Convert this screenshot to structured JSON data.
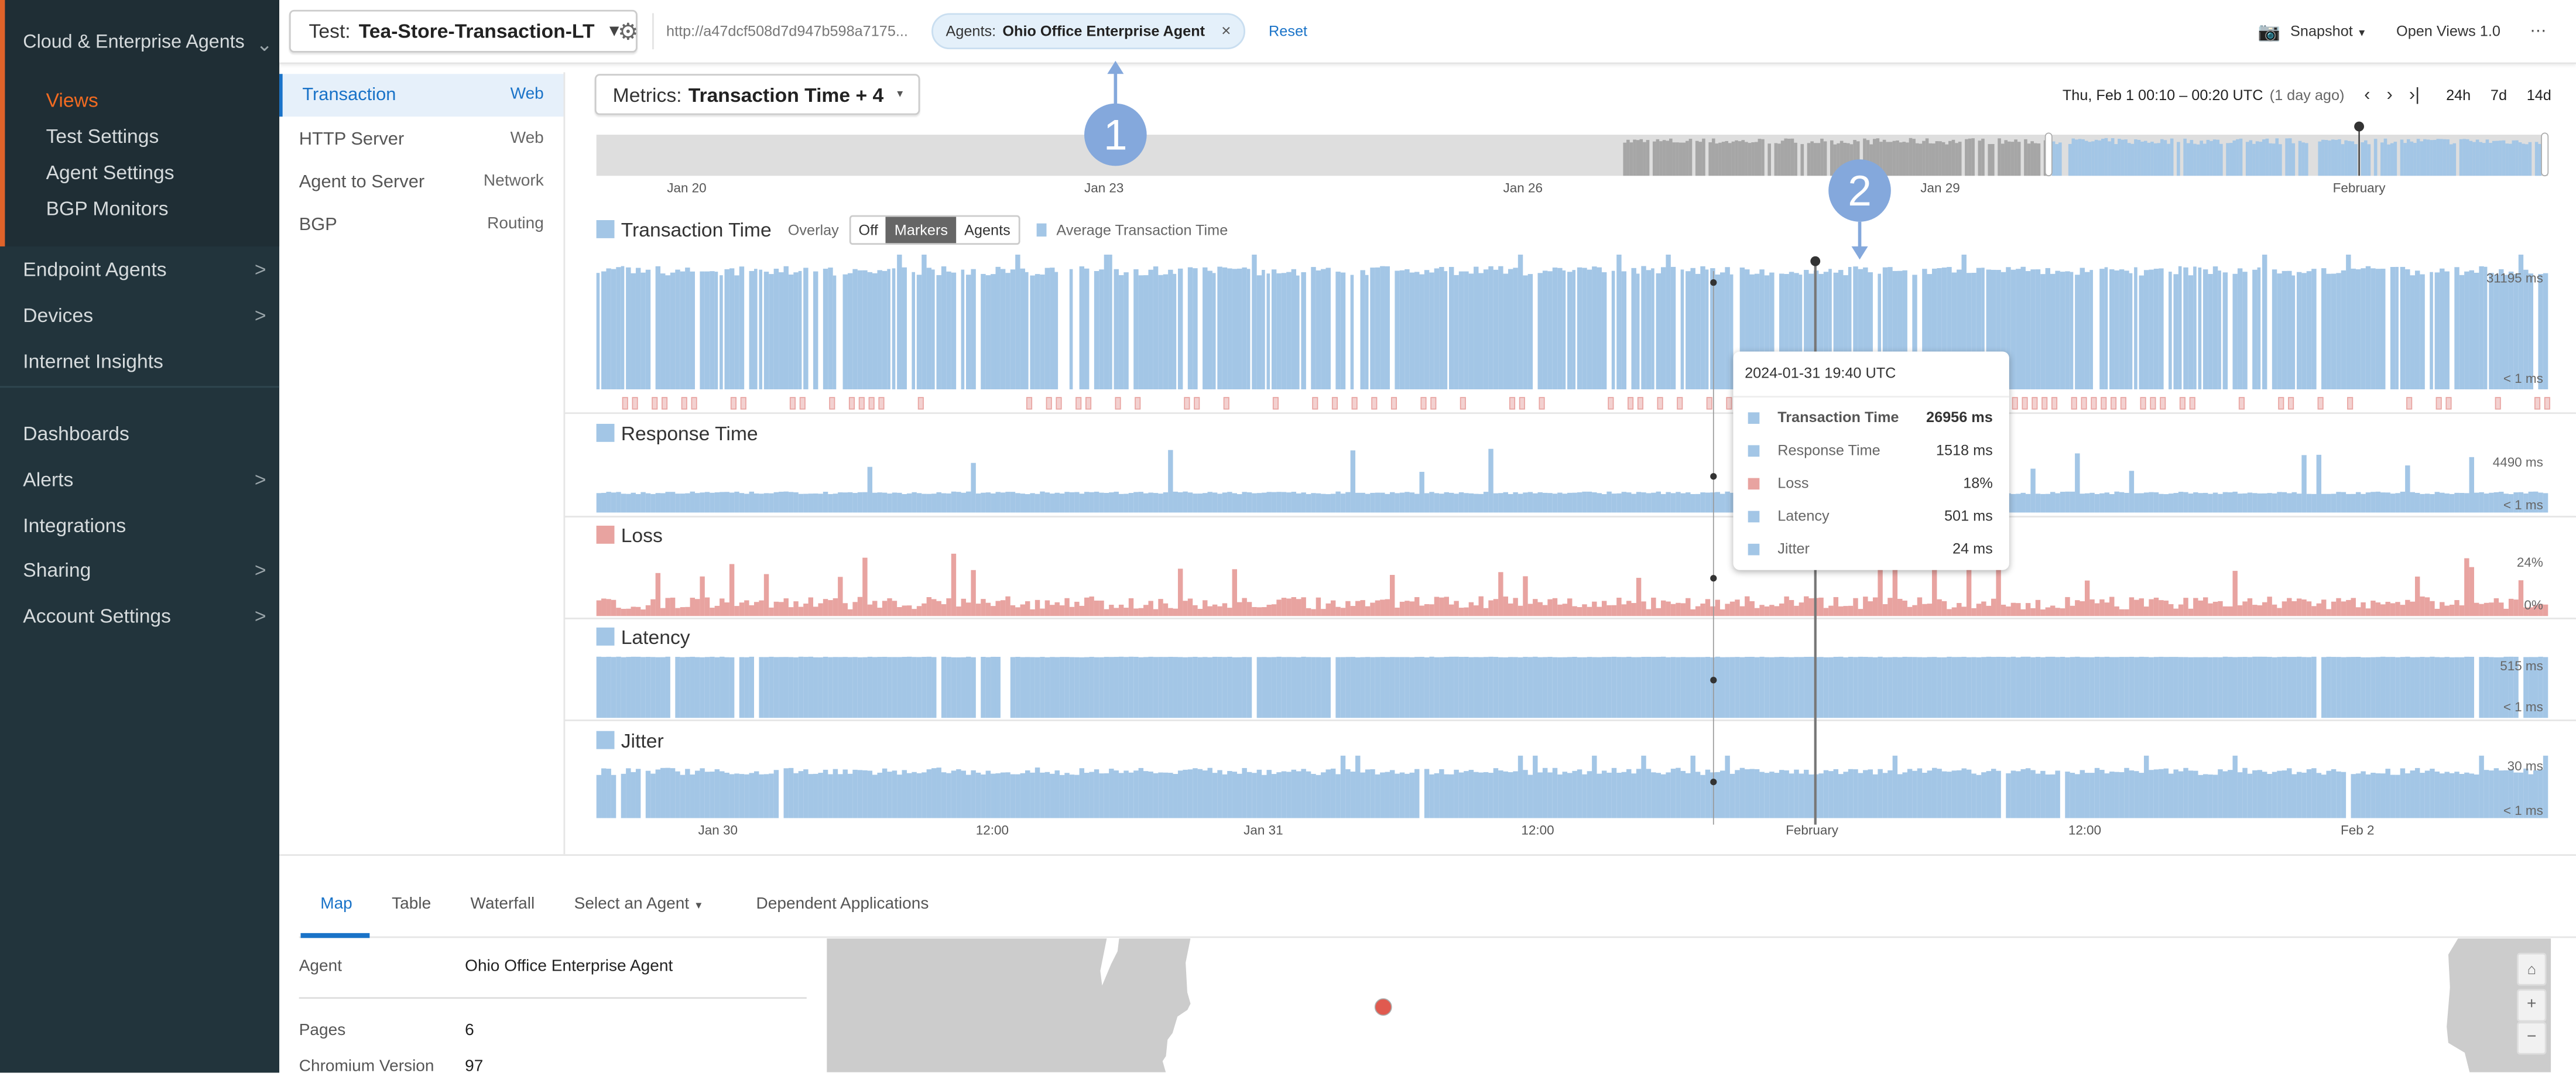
{
  "sidebar": {
    "section": "Cloud & Enterprise Agents",
    "sub_items": [
      "Views",
      "Test Settings",
      "Agent Settings",
      "BGP Monitors"
    ],
    "items": [
      "Endpoint Agents",
      "Devices",
      "Internet Insights",
      "Dashboards",
      "Alerts",
      "Integrations",
      "Sharing",
      "Account Settings"
    ],
    "active_color": "#f26b21"
  },
  "topbar": {
    "test_label": "Test:",
    "test_name": "Tea-Store-Transaction-LT",
    "url": "http://a47dcf508d7d947b598a7175...",
    "agents_label": "Agents:",
    "agents_value": "Ohio Office Enterprise Agent",
    "reset": "Reset",
    "snapshot": "Snapshot",
    "open_views": "Open Views 1.0",
    "more": "⋯"
  },
  "subnav": [
    {
      "label": "Transaction",
      "type": "Web"
    },
    {
      "label": "HTTP Server",
      "type": "Web"
    },
    {
      "label": "Agent to Server",
      "type": "Network"
    },
    {
      "label": "BGP",
      "type": "Routing"
    }
  ],
  "metrics": {
    "label": "Metrics:",
    "value": "Transaction Time + 4"
  },
  "time": {
    "range": "Thu, Feb 1 00:10 – 00:20 UTC",
    "ago": "(1 day ago)",
    "presets": [
      "24h",
      "7d",
      "14d"
    ]
  },
  "timeline": {
    "ticks": [
      "Jan 20",
      "Jan 23",
      "Jan 26",
      "Jan 29",
      "February"
    ]
  },
  "overlay": {
    "label": "Overlay",
    "options": [
      "Off",
      "Markers",
      "Agents"
    ],
    "selected": "Markers",
    "legend": "Average Transaction Time"
  },
  "panels": [
    {
      "title": "Transaction Time",
      "max": "31195 ms",
      "min": "< 1 ms",
      "color": "#a3c6e6"
    },
    {
      "title": "Response Time",
      "max": "4490 ms",
      "min": "< 1 ms",
      "color": "#a3c6e6"
    },
    {
      "title": "Loss",
      "max": "24%",
      "min": "0%",
      "color": "#e8a3a0"
    },
    {
      "title": "Latency",
      "max": "515 ms",
      "min": "< 1 ms",
      "color": "#a3c6e6"
    },
    {
      "title": "Jitter",
      "max": "30 ms",
      "min": "< 1 ms",
      "color": "#a3c6e6"
    }
  ],
  "x_ticks": [
    "Jan 30",
    "12:00",
    "Jan 31",
    "12:00",
    "February",
    "12:00",
    "Feb 2"
  ],
  "tooltip": {
    "time": "2024-01-31 19:40 UTC",
    "rows": [
      {
        "name": "Transaction Time",
        "value": "26956 ms",
        "color": "#a3c6e6"
      },
      {
        "name": "Response Time",
        "value": "1518 ms",
        "color": "#a3c6e6"
      },
      {
        "name": "Loss",
        "value": "18%",
        "color": "#e8a3a0"
      },
      {
        "name": "Latency",
        "value": "501 ms",
        "color": "#a3c6e6"
      },
      {
        "name": "Jitter",
        "value": "24 ms",
        "color": "#a3c6e6"
      }
    ]
  },
  "annotations": [
    "1",
    "2"
  ],
  "bottom": {
    "tabs": [
      "Map",
      "Table",
      "Waterfall",
      "Select an Agent",
      "Dependent Applications"
    ],
    "active_tab": "Map",
    "info": [
      {
        "label": "Agent",
        "value": "Ohio Office Enterprise Agent"
      },
      {
        "label": "Pages",
        "value": "6"
      },
      {
        "label": "Chromium Version",
        "value": "97"
      }
    ],
    "map_controls": [
      "home",
      "+",
      "−"
    ]
  }
}
